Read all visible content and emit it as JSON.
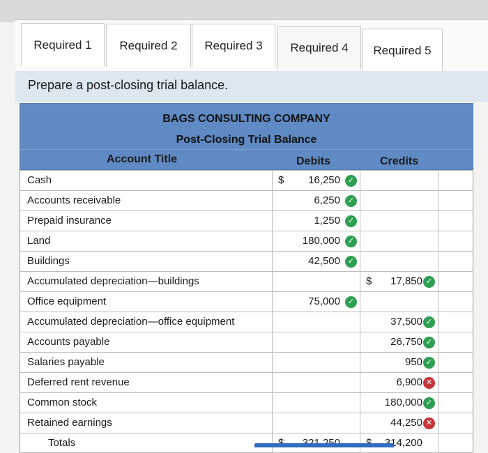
{
  "tabs": [
    {
      "label": "Required 1"
    },
    {
      "label": "Required 2"
    },
    {
      "label": "Required 3"
    },
    {
      "label": "Required 4"
    },
    {
      "label": "Required 5"
    }
  ],
  "instruction": "Prepare a post-closing trial balance.",
  "report": {
    "company": "BAGS CONSULTING COMPANY",
    "title": "Post-Closing Trial Balance",
    "col_account": "Account Title",
    "col_debits": "Debits",
    "col_credits": "Credits"
  },
  "rows": [
    {
      "account": "Cash",
      "debit_sign": "$",
      "debit": "16,250",
      "debit_mark": "correct",
      "credit_sign": "",
      "credit": "",
      "credit_mark": ""
    },
    {
      "account": "Accounts receivable",
      "debit_sign": "",
      "debit": "6,250",
      "debit_mark": "correct",
      "credit_sign": "",
      "credit": "",
      "credit_mark": ""
    },
    {
      "account": "Prepaid insurance",
      "debit_sign": "",
      "debit": "1,250",
      "debit_mark": "correct",
      "credit_sign": "",
      "credit": "",
      "credit_mark": ""
    },
    {
      "account": "Land",
      "debit_sign": "",
      "debit": "180,000",
      "debit_mark": "correct",
      "credit_sign": "",
      "credit": "",
      "credit_mark": ""
    },
    {
      "account": "Buildings",
      "debit_sign": "",
      "debit": "42,500",
      "debit_mark": "correct",
      "credit_sign": "",
      "credit": "",
      "credit_mark": ""
    },
    {
      "account": "Accumulated depreciation—buildings",
      "debit_sign": "",
      "debit": "",
      "debit_mark": "",
      "credit_sign": "$",
      "credit": "17,850",
      "credit_mark": "correct"
    },
    {
      "account": "Office equipment",
      "debit_sign": "",
      "debit": "75,000",
      "debit_mark": "correct",
      "credit_sign": "",
      "credit": "",
      "credit_mark": ""
    },
    {
      "account": "Accumulated depreciation—office equipment",
      "debit_sign": "",
      "debit": "",
      "debit_mark": "",
      "credit_sign": "",
      "credit": "37,500",
      "credit_mark": "correct"
    },
    {
      "account": "Accounts payable",
      "debit_sign": "",
      "debit": "",
      "debit_mark": "",
      "credit_sign": "",
      "credit": "26,750",
      "credit_mark": "correct"
    },
    {
      "account": "Salaries payable",
      "debit_sign": "",
      "debit": "",
      "debit_mark": "",
      "credit_sign": "",
      "credit": "950",
      "credit_mark": "correct"
    },
    {
      "account": "Deferred rent revenue",
      "debit_sign": "",
      "debit": "",
      "debit_mark": "",
      "credit_sign": "",
      "credit": "6,900",
      "credit_mark": "incorrect"
    },
    {
      "account": "Common stock",
      "debit_sign": "",
      "debit": "",
      "debit_mark": "",
      "credit_sign": "",
      "credit": "180,000",
      "credit_mark": "correct"
    },
    {
      "account": "Retained earnings",
      "debit_sign": "",
      "debit": "",
      "debit_mark": "",
      "credit_sign": "",
      "credit": "44,250",
      "credit_mark": "incorrect"
    },
    {
      "account": "Totals",
      "debit_sign": "$",
      "debit": "321,250",
      "debit_mark": "",
      "credit_sign": "$",
      "credit": "314,200",
      "credit_mark": ""
    }
  ],
  "colors": {
    "header_blue": "#5f8ac4",
    "correct_green": "#2e9f52",
    "incorrect_red": "#c7343a"
  },
  "icons": {
    "correct": "check-circle-icon",
    "incorrect": "x-circle-icon"
  }
}
